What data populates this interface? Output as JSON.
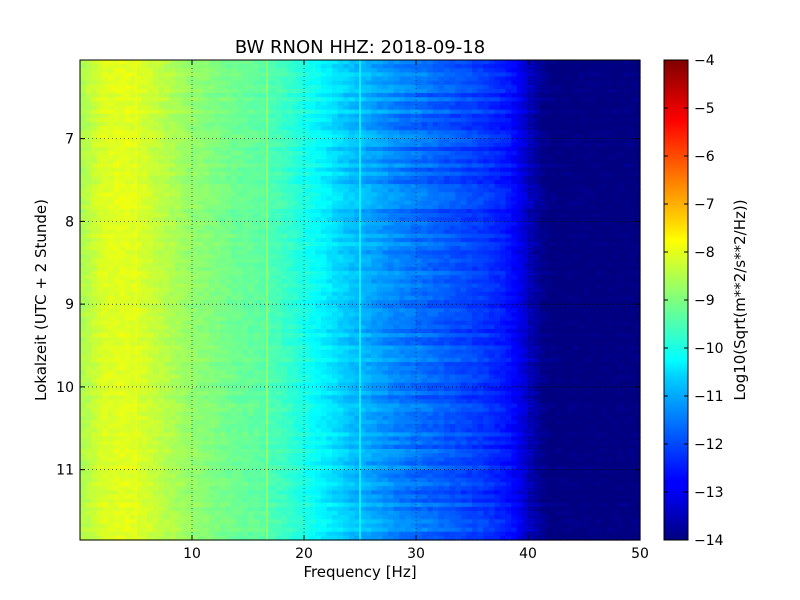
{
  "chart_data": {
    "type": "heatmap",
    "title": "BW RNON HHZ: 2018-09-18",
    "xlabel": "Frequency [Hz]",
    "ylabel": "Lokalzeit (UTC + 2 Stunde)",
    "xlim": [
      0,
      50
    ],
    "ylim": [
      6.05,
      11.85
    ],
    "y_inverted": true,
    "x_ticks": [
      10,
      20,
      30,
      40,
      50
    ],
    "x_tick_labels": [
      "10",
      "20",
      "30",
      "40",
      "50"
    ],
    "y_ticks": [
      7,
      8,
      9,
      10,
      11
    ],
    "y_tick_labels": [
      "7",
      "8",
      "9",
      "10",
      "11"
    ],
    "grid": true,
    "colormap": "jet",
    "colorbar": {
      "label": "Log10(Sqrt(m**2/s**2/Hz))",
      "range": [
        -14,
        -4
      ],
      "ticks": [
        -4,
        -5,
        -6,
        -7,
        -8,
        -9,
        -10,
        -11,
        -12,
        -13,
        -14
      ],
      "tick_labels": [
        "−4",
        "−5",
        "−6",
        "−7",
        "−8",
        "−9",
        "−10",
        "−11",
        "−12",
        "−13",
        "−14"
      ]
    },
    "spectral_profile": {
      "frequency_hz": [
        0,
        2,
        4,
        6,
        8,
        10,
        12,
        14,
        16,
        17,
        18,
        20,
        22,
        24,
        26,
        28,
        30,
        32,
        34,
        36,
        38,
        39,
        40,
        41,
        42,
        44,
        50
      ],
      "log10_amplitude": [
        -8.6,
        -8.1,
        -8.0,
        -8.2,
        -8.5,
        -8.8,
        -9.0,
        -9.2,
        -9.3,
        -9.5,
        -9.6,
        -10.0,
        -10.4,
        -10.8,
        -11.1,
        -11.4,
        -11.6,
        -11.8,
        -12.0,
        -12.2,
        -12.5,
        -12.8,
        -13.3,
        -13.8,
        -14.0,
        -14.0,
        -14.0
      ]
    },
    "horizontal_lines_hz": [
      5,
      16.7,
      25
    ],
    "horizontal_lines_log10_amplitude": [
      -7.9,
      -8.7,
      -10.3
    ]
  }
}
